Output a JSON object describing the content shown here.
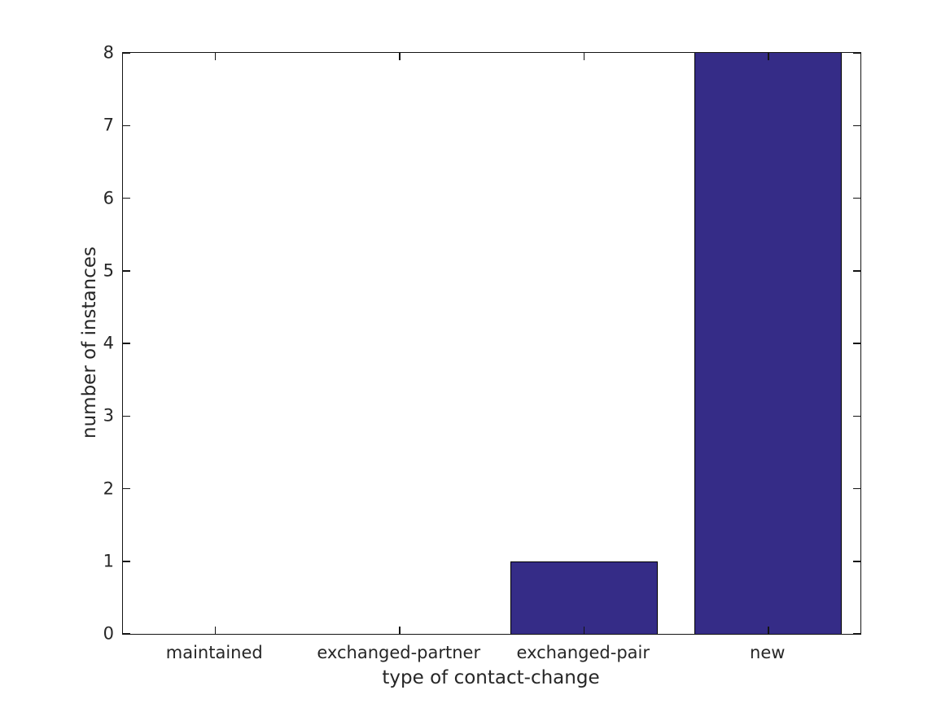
{
  "figure": {
    "background": "#ffffff",
    "text_color": "#262626",
    "spine_color": "#141414"
  },
  "chart_data": {
    "type": "bar",
    "title": "",
    "xlabel": "type of contact-change",
    "ylabel": "number of instances",
    "categories": [
      "maintained",
      "exchanged-partner",
      "exchanged-pair",
      "new"
    ],
    "values": [
      0,
      0,
      1,
      8
    ],
    "ylim": [
      0,
      8
    ],
    "yticks": [
      0,
      1,
      2,
      3,
      4,
      5,
      6,
      7,
      8
    ],
    "bar_color": "#352c87",
    "bar_edge_color": "#000000",
    "bar_width_fraction": 0.8,
    "grid": false,
    "legend": null,
    "tick_direction": "in",
    "ticks_on_all_spines": true
  }
}
